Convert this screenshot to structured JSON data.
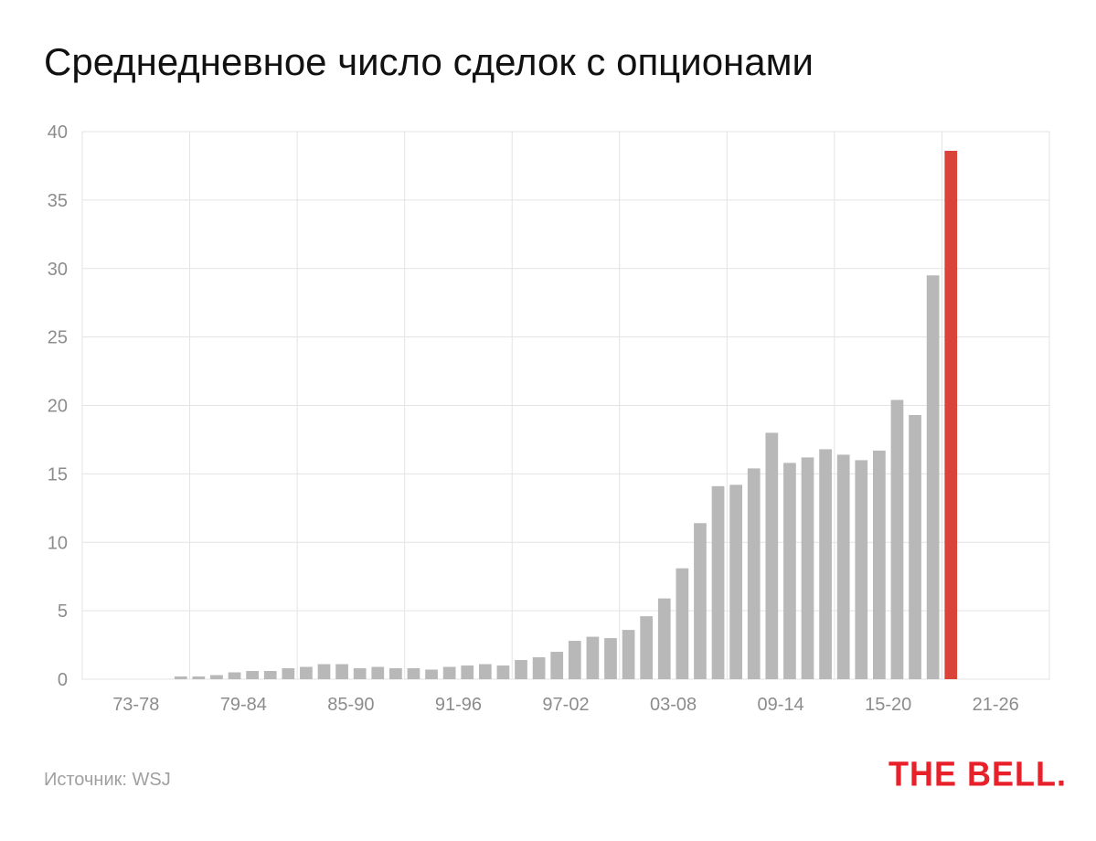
{
  "title": "Среднедневное число сделок с опционами",
  "source": "Источник: WSJ",
  "logo": "THE BELL.",
  "colors": {
    "bar": "#b8b8b8",
    "highlight": "#d9433a",
    "grid": "#e3e3e3",
    "axis_text": "#8c8c8c"
  },
  "chart_data": {
    "type": "bar",
    "title": "Среднедневное число сделок с опционами",
    "xlabel": "",
    "ylabel": "",
    "xlim": [
      1973,
      2027
    ],
    "ylim": [
      0,
      40
    ],
    "yticks": [
      0,
      5,
      10,
      15,
      20,
      25,
      30,
      35,
      40
    ],
    "grid": true,
    "x_tick_labels": [
      "73-78",
      "79-84",
      "85-90",
      "91-96",
      "97-02",
      "03-08",
      "09-14",
      "15-20",
      "21-26"
    ],
    "years": [
      1973,
      1974,
      1975,
      1976,
      1977,
      1978,
      1979,
      1980,
      1981,
      1982,
      1983,
      1984,
      1985,
      1986,
      1987,
      1988,
      1989,
      1990,
      1991,
      1992,
      1993,
      1994,
      1995,
      1996,
      1997,
      1998,
      1999,
      2000,
      2001,
      2002,
      2003,
      2004,
      2005,
      2006,
      2007,
      2008,
      2009,
      2010,
      2011,
      2012,
      2013,
      2014,
      2015,
      2016,
      2017,
      2018,
      2019,
      2020,
      2021,
      2022,
      2023
    ],
    "values": [
      0.0,
      0.0,
      0.0,
      0.0,
      0.0,
      0.2,
      0.2,
      0.3,
      0.5,
      0.6,
      0.6,
      0.8,
      0.9,
      1.1,
      1.1,
      0.8,
      0.9,
      0.8,
      0.8,
      0.7,
      0.9,
      1.0,
      1.1,
      1.0,
      1.4,
      1.6,
      2.0,
      2.8,
      3.1,
      3.0,
      3.6,
      4.6,
      5.9,
      8.1,
      11.4,
      14.1,
      14.2,
      15.4,
      18.0,
      15.8,
      16.2,
      16.8,
      16.4,
      16.0,
      16.7,
      20.4,
      19.3,
      29.5,
      38.6,
      0.0,
      0.0
    ],
    "highlight_year": 2021
  }
}
